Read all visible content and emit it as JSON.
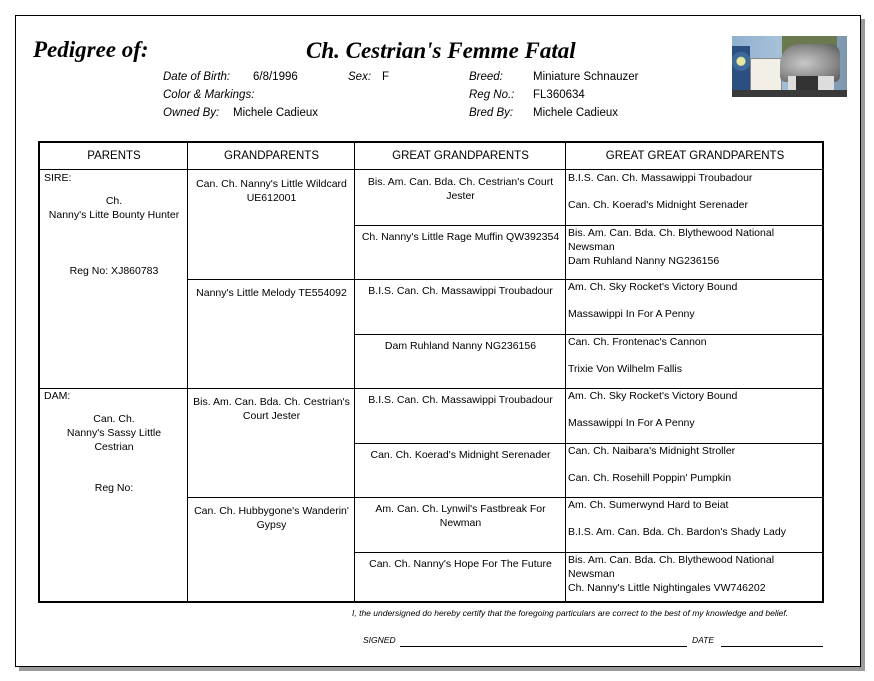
{
  "header": {
    "title_label": "Pedigree of:",
    "dog_name": "Ch. Cestrian's Femme Fatal",
    "photo_icon": "schnauzer-show-photo",
    "fields": {
      "dob_label": "Date of Birth:",
      "dob": "6/8/1996",
      "sex_label": "Sex:",
      "sex": "F",
      "breed_label": "Breed:",
      "breed": "Miniature Schnauzer",
      "color_label": "Color & Markings:",
      "color": "",
      "reg_label": "Reg No.:",
      "reg": "FL360634",
      "owned_label": "Owned By:",
      "owned": "Michele Cadieux",
      "bred_label": "Bred By:",
      "bred": "Michele Cadieux"
    }
  },
  "table": {
    "columns": [
      "PARENTS",
      "GRANDPARENTS",
      "GREAT GRANDPARENTS",
      "GREAT GREAT GRANDPARENTS"
    ],
    "parents": [
      {
        "role": "SIRE:",
        "title": "Ch.",
        "name": "Nanny's Litte Bounty Hunter",
        "reg": "Reg No: XJ860783"
      },
      {
        "role": "DAM:",
        "title": "Can. Ch.",
        "name": "Nanny's Sassy Little Cestrian",
        "reg": "Reg No:"
      }
    ],
    "grandparents": [
      "Can. Ch. Nanny's Little Wildcard UE612001",
      "Nanny's Little Melody TE554092",
      "Bis. Am. Can. Bda. Ch. Cestrian's Court Jester",
      "Can. Ch. Hubbygone's Wanderin' Gypsy"
    ],
    "great_grandparents": [
      "Bis. Am. Can. Bda. Ch. Cestrian's Court Jester",
      "Ch. Nanny's Little Rage Muffin QW392354",
      "B.I.S. Can. Ch. Massawippi Troubadour",
      "Dam Ruhland Nanny NG236156",
      "B.I.S. Can. Ch. Massawippi Troubadour",
      "Can. Ch. Koerad's Midnight Serenader",
      "Am. Can. Ch. Lynwil's Fastbreak For Newman",
      "Can. Ch. Nanny's Hope For The Future"
    ],
    "great_great_grandparents": [
      [
        "B.I.S. Can. Ch. Massawippi Troubadour",
        "Can. Ch. Koerad's Midnight Serenader"
      ],
      [
        "Bis. Am. Can. Bda. Ch. Blythewood National Newsman",
        "Dam Ruhland Nanny NG236156"
      ],
      [
        "Am. Ch. Sky Rocket's Victory Bound",
        "Massawippi In For A Penny"
      ],
      [
        "Can. Ch. Frontenac's Cannon",
        "Trixie Von Wilhelm Fallis"
      ],
      [
        "Am. Ch. Sky Rocket's Victory Bound",
        "Massawippi In For A Penny"
      ],
      [
        "Can. Ch. Naibara's Midnight Stroller",
        "Can. Ch. Rosehill Poppin' Pumpkin"
      ],
      [
        "Am. Ch. Sumerwynd Hard to Beiat",
        "B.I.S. Am. Can. Bda. Ch. Bardon's Shady Lady"
      ],
      [
        "Bis. Am. Can. Bda. Ch. Blythewood National Newsman",
        "Ch. Nanny's Little Nightingales VW746202"
      ]
    ]
  },
  "footer": {
    "certification": "I, the undersigned do hereby certify that the foregoing particulars are correct to the best of my knowledge and belief.",
    "signed_label": "SIGNED",
    "date_label": "DATE"
  }
}
